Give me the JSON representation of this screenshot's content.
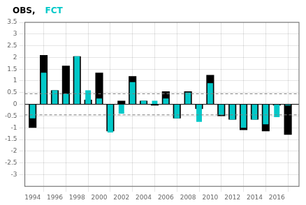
{
  "chart_data": {
    "type": "bar",
    "x": [
      1994,
      1995,
      1996,
      1997,
      1998,
      1999,
      2000,
      2001,
      2002,
      2003,
      2004,
      2005,
      2006,
      2007,
      2008,
      2009,
      2010,
      2011,
      2012,
      2013,
      2014,
      2015,
      2016,
      2017
    ],
    "series": [
      {
        "name": "OBS,",
        "color": "#000000",
        "values": [
          -1.0,
          2.1,
          0.6,
          1.65,
          2.05,
          0.2,
          1.35,
          -1.15,
          0.15,
          1.2,
          0.15,
          -0.05,
          0.55,
          -0.6,
          0.55,
          -0.2,
          1.25,
          -0.5,
          -0.65,
          -1.1,
          -0.65,
          -1.15,
          -0.05,
          -1.3
        ]
      },
      {
        "name": "FCT",
        "color": "#00C8C8",
        "values": [
          -0.6,
          1.35,
          0.6,
          0.45,
          2.05,
          0.6,
          0.25,
          -1.2,
          -0.4,
          0.95,
          0.15,
          0.15,
          0.25,
          -0.6,
          0.5,
          -0.75,
          0.9,
          -0.45,
          -0.65,
          -1.0,
          -0.65,
          -0.85,
          -0.55,
          -0.05
        ]
      }
    ],
    "xlim": [
      1993.3,
      2018.0
    ],
    "xticks": [
      1994,
      1996,
      1998,
      2000,
      2002,
      2004,
      2006,
      2008,
      2010,
      2012,
      2014,
      2016
    ],
    "ylim": [
      -3.5,
      3.5
    ],
    "yticks": [
      -3.0,
      -2.5,
      -2.0,
      -1.5,
      -1.0,
      -0.5,
      0.0,
      0.5,
      1.0,
      1.5,
      2.0,
      2.5,
      3.0,
      3.5
    ],
    "reference_lines": [
      {
        "y": 0.45,
        "line_style": "dashed"
      },
      {
        "y": -0.45,
        "line_style": "dashed"
      },
      {
        "y": 0,
        "line_style": "solid"
      }
    ],
    "legend": "top left",
    "grid": true
  }
}
